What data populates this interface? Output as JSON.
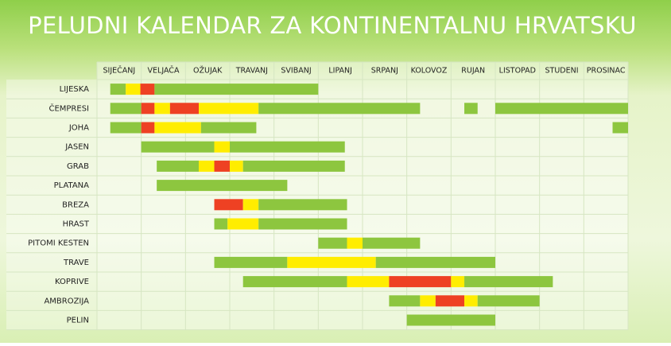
{
  "chart_data": {
    "type": "timeline",
    "title": "PELUDNI KALENDAR ZA KONTINENTALNU HRVATSKU",
    "categories": [
      "SIJEČANJ",
      "VELJAČA",
      "OŽUJAK",
      "TRAVANJ",
      "SVIBANJ",
      "LIPANJ",
      "SRPANJ",
      "KOLOVOZ",
      "RUJAN",
      "LISTOPAD",
      "STUDENI",
      "PROSINAC"
    ],
    "xlim": [
      0,
      12
    ],
    "grid": true,
    "rows": [
      {
        "name": "LIJESKA",
        "segments": [
          {
            "start": 0.3,
            "end": 0.65,
            "color": "#8dc63f"
          },
          {
            "start": 0.65,
            "end": 0.98,
            "color": "#ffed00"
          },
          {
            "start": 0.98,
            "end": 1.3,
            "color": "#ee4123"
          },
          {
            "start": 1.3,
            "end": 5.0,
            "color": "#8dc63f"
          }
        ]
      },
      {
        "name": "ČEMPRESI",
        "segments": [
          {
            "start": 0.3,
            "end": 1.0,
            "color": "#8dc63f"
          },
          {
            "start": 1.0,
            "end": 1.3,
            "color": "#ee4123"
          },
          {
            "start": 1.3,
            "end": 1.65,
            "color": "#ffed00"
          },
          {
            "start": 1.65,
            "end": 2.3,
            "color": "#ee4123"
          },
          {
            "start": 2.3,
            "end": 3.65,
            "color": "#ffed00"
          },
          {
            "start": 3.65,
            "end": 7.3,
            "color": "#8dc63f"
          },
          {
            "start": 8.3,
            "end": 8.6,
            "color": "#8dc63f"
          },
          {
            "start": 9.0,
            "end": 12.0,
            "color": "#8dc63f"
          }
        ]
      },
      {
        "name": "JOHA",
        "segments": [
          {
            "start": 0.3,
            "end": 1.0,
            "color": "#8dc63f"
          },
          {
            "start": 1.0,
            "end": 1.3,
            "color": "#ee4123"
          },
          {
            "start": 1.3,
            "end": 2.35,
            "color": "#ffed00"
          },
          {
            "start": 2.35,
            "end": 3.6,
            "color": "#8dc63f"
          },
          {
            "start": 11.65,
            "end": 12.0,
            "color": "#8dc63f"
          }
        ]
      },
      {
        "name": "JASEN",
        "segments": [
          {
            "start": 1.0,
            "end": 2.65,
            "color": "#8dc63f"
          },
          {
            "start": 2.65,
            "end": 3.0,
            "color": "#ffed00"
          },
          {
            "start": 3.0,
            "end": 5.6,
            "color": "#8dc63f"
          }
        ]
      },
      {
        "name": "GRAB",
        "segments": [
          {
            "start": 1.35,
            "end": 2.3,
            "color": "#8dc63f"
          },
          {
            "start": 2.3,
            "end": 2.65,
            "color": "#ffed00"
          },
          {
            "start": 2.65,
            "end": 3.0,
            "color": "#ee4123"
          },
          {
            "start": 3.0,
            "end": 3.3,
            "color": "#ffed00"
          },
          {
            "start": 3.3,
            "end": 5.6,
            "color": "#8dc63f"
          }
        ]
      },
      {
        "name": "PLATANA",
        "segments": [
          {
            "start": 1.35,
            "end": 4.3,
            "color": "#8dc63f"
          }
        ]
      },
      {
        "name": "BREZA",
        "segments": [
          {
            "start": 2.65,
            "end": 3.3,
            "color": "#ee4123"
          },
          {
            "start": 3.3,
            "end": 3.65,
            "color": "#ffed00"
          },
          {
            "start": 3.65,
            "end": 5.65,
            "color": "#8dc63f"
          }
        ]
      },
      {
        "name": "HRAST",
        "segments": [
          {
            "start": 2.65,
            "end": 2.95,
            "color": "#8dc63f"
          },
          {
            "start": 2.95,
            "end": 3.65,
            "color": "#ffed00"
          },
          {
            "start": 3.65,
            "end": 5.65,
            "color": "#8dc63f"
          }
        ]
      },
      {
        "name": "PITOMI KESTEN",
        "segments": [
          {
            "start": 5.0,
            "end": 5.65,
            "color": "#8dc63f"
          },
          {
            "start": 5.65,
            "end": 6.0,
            "color": "#ffed00"
          },
          {
            "start": 6.0,
            "end": 7.3,
            "color": "#8dc63f"
          }
        ]
      },
      {
        "name": "TRAVE",
        "segments": [
          {
            "start": 2.65,
            "end": 4.3,
            "color": "#8dc63f"
          },
          {
            "start": 4.3,
            "end": 6.3,
            "color": "#ffed00"
          },
          {
            "start": 6.3,
            "end": 9.0,
            "color": "#8dc63f"
          }
        ]
      },
      {
        "name": "KOPRIVE",
        "segments": [
          {
            "start": 3.3,
            "end": 5.65,
            "color": "#8dc63f"
          },
          {
            "start": 5.65,
            "end": 6.6,
            "color": "#ffed00"
          },
          {
            "start": 6.6,
            "end": 8.0,
            "color": "#ee4123"
          },
          {
            "start": 8.0,
            "end": 8.3,
            "color": "#ffed00"
          },
          {
            "start": 8.3,
            "end": 10.3,
            "color": "#8dc63f"
          }
        ]
      },
      {
        "name": "AMBROZIJA",
        "segments": [
          {
            "start": 6.6,
            "end": 7.3,
            "color": "#8dc63f"
          },
          {
            "start": 7.3,
            "end": 7.65,
            "color": "#ffed00"
          },
          {
            "start": 7.65,
            "end": 8.3,
            "color": "#ee4123"
          },
          {
            "start": 8.3,
            "end": 8.6,
            "color": "#ffed00"
          },
          {
            "start": 8.6,
            "end": 10.0,
            "color": "#8dc63f"
          }
        ]
      },
      {
        "name": "PELIN",
        "segments": [
          {
            "start": 7.0,
            "end": 9.0,
            "color": "#8dc63f"
          }
        ]
      }
    ]
  }
}
